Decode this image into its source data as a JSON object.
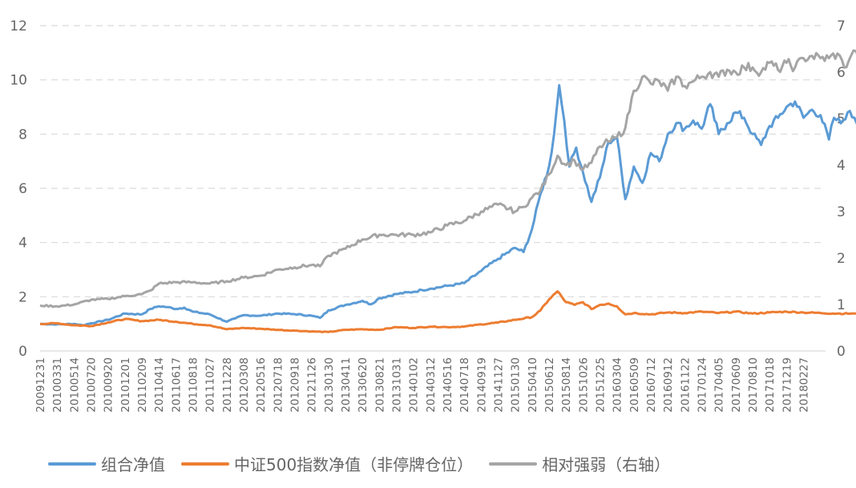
{
  "chart_data": {
    "type": "line",
    "left_axis": {
      "ylim": [
        0,
        12
      ],
      "ticks": [
        "0",
        "2",
        "4",
        "6",
        "8",
        "10",
        "12"
      ]
    },
    "right_axis": {
      "ylim": [
        0,
        7
      ],
      "ticks": [
        "0",
        "1",
        "2",
        "3",
        "4",
        "5",
        "6",
        "7"
      ]
    },
    "grid": true,
    "legend_position": "bottom",
    "categories": [
      "20091231",
      "20100331",
      "20100514",
      "20100720",
      "20100920",
      "20101201",
      "20110209",
      "20110414",
      "20110617",
      "20110818",
      "20111027",
      "20111228",
      "20120308",
      "20120516",
      "20120718",
      "20120918",
      "20121126",
      "20130130",
      "20130411",
      "20130620",
      "20130821",
      "20131031",
      "20140102",
      "20140312",
      "20140516",
      "20140718",
      "20140919",
      "20141127",
      "20150130",
      "20150410",
      "20150612",
      "20150814",
      "20151026",
      "20151225",
      "20160304",
      "20160509",
      "20160712",
      "20160912",
      "20161122",
      "20170124",
      "20170405",
      "20170609",
      "20170810",
      "20171018",
      "20171219",
      "20180227"
    ],
    "x_range": [
      0,
      46.3
    ],
    "series": [
      {
        "name": "组合净值",
        "axis": "left",
        "color": "#5b9bd5",
        "points": [
          [
            0,
            1.0
          ],
          [
            1,
            0.98
          ],
          [
            2,
            1.0
          ],
          [
            2.5,
            0.95
          ],
          [
            3,
            1.02
          ],
          [
            4,
            1.15
          ],
          [
            5,
            1.38
          ],
          [
            6,
            1.35
          ],
          [
            6.5,
            1.55
          ],
          [
            7,
            1.65
          ],
          [
            7.5,
            1.62
          ],
          [
            8,
            1.55
          ],
          [
            8.5,
            1.6
          ],
          [
            9,
            1.45
          ],
          [
            10,
            1.35
          ],
          [
            11,
            1.08
          ],
          [
            11.5,
            1.2
          ],
          [
            12,
            1.32
          ],
          [
            13,
            1.3
          ],
          [
            14,
            1.38
          ],
          [
            15,
            1.36
          ],
          [
            16,
            1.3
          ],
          [
            16.5,
            1.22
          ],
          [
            17,
            1.5
          ],
          [
            18,
            1.7
          ],
          [
            19,
            1.85
          ],
          [
            19.5,
            1.72
          ],
          [
            20,
            1.95
          ],
          [
            21,
            2.1
          ],
          [
            22,
            2.18
          ],
          [
            22.5,
            2.25
          ],
          [
            23,
            2.3
          ],
          [
            24,
            2.4
          ],
          [
            25,
            2.5
          ],
          [
            26,
            2.95
          ],
          [
            27,
            3.4
          ],
          [
            28,
            3.8
          ],
          [
            28.5,
            3.65
          ],
          [
            29,
            4.5
          ],
          [
            29.5,
            5.8
          ],
          [
            30,
            6.8
          ],
          [
            30.3,
            8.0
          ],
          [
            30.6,
            9.8
          ],
          [
            30.9,
            8.5
          ],
          [
            31.2,
            6.8
          ],
          [
            31.6,
            7.5
          ],
          [
            32,
            6.6
          ],
          [
            32.5,
            5.5
          ],
          [
            33,
            6.4
          ],
          [
            33.5,
            7.7
          ],
          [
            34,
            7.9
          ],
          [
            34.5,
            5.6
          ],
          [
            35,
            6.8
          ],
          [
            35.5,
            6.2
          ],
          [
            36,
            7.3
          ],
          [
            36.5,
            7.0
          ],
          [
            37,
            8.0
          ],
          [
            37.5,
            8.4
          ],
          [
            38,
            8.2
          ],
          [
            38.5,
            8.5
          ],
          [
            39,
            8.2
          ],
          [
            39.5,
            9.1
          ],
          [
            40,
            8.0
          ],
          [
            40.5,
            8.4
          ],
          [
            41,
            8.8
          ],
          [
            41.5,
            8.6
          ],
          [
            42,
            8.0
          ],
          [
            42.5,
            7.6
          ],
          [
            43,
            8.3
          ],
          [
            43.5,
            8.6
          ],
          [
            44,
            9.0
          ],
          [
            44.5,
            9.2
          ],
          [
            45,
            8.6
          ],
          [
            45.5,
            8.9
          ],
          [
            46,
            8.7
          ],
          [
            46.5,
            7.8
          ],
          [
            46.8,
            8.6
          ],
          [
            47.2,
            8.4
          ],
          [
            47.6,
            8.8
          ],
          [
            48,
            8.6
          ],
          [
            48.3,
            8.3
          ]
        ]
      },
      {
        "name": "中证500指数净值（非停牌仓位）",
        "axis": "left",
        "color": "#ed7d31",
        "points": [
          [
            0,
            1.0
          ],
          [
            1,
            1.02
          ],
          [
            2,
            0.95
          ],
          [
            3,
            0.92
          ],
          [
            4,
            1.05
          ],
          [
            5,
            1.18
          ],
          [
            6,
            1.1
          ],
          [
            7,
            1.15
          ],
          [
            8,
            1.08
          ],
          [
            9,
            1.0
          ],
          [
            10,
            0.95
          ],
          [
            11,
            0.8
          ],
          [
            12,
            0.85
          ],
          [
            13,
            0.82
          ],
          [
            14,
            0.78
          ],
          [
            15,
            0.75
          ],
          [
            16,
            0.72
          ],
          [
            17,
            0.7
          ],
          [
            18,
            0.78
          ],
          [
            19,
            0.8
          ],
          [
            20,
            0.78
          ],
          [
            21,
            0.88
          ],
          [
            22,
            0.85
          ],
          [
            23,
            0.9
          ],
          [
            24,
            0.88
          ],
          [
            25,
            0.9
          ],
          [
            26,
            0.98
          ],
          [
            27,
            1.05
          ],
          [
            28,
            1.15
          ],
          [
            29,
            1.25
          ],
          [
            29.5,
            1.5
          ],
          [
            30,
            1.9
          ],
          [
            30.5,
            2.2
          ],
          [
            31,
            1.8
          ],
          [
            31.5,
            1.7
          ],
          [
            32,
            1.8
          ],
          [
            32.5,
            1.55
          ],
          [
            33,
            1.7
          ],
          [
            33.5,
            1.75
          ],
          [
            34,
            1.65
          ],
          [
            34.5,
            1.35
          ],
          [
            35,
            1.4
          ],
          [
            36,
            1.35
          ],
          [
            37,
            1.42
          ],
          [
            38,
            1.4
          ],
          [
            39,
            1.45
          ],
          [
            40,
            1.4
          ],
          [
            41,
            1.45
          ],
          [
            42,
            1.38
          ],
          [
            43,
            1.42
          ],
          [
            44,
            1.45
          ],
          [
            45,
            1.42
          ],
          [
            46,
            1.4
          ],
          [
            47,
            1.38
          ],
          [
            48,
            1.38
          ],
          [
            48.3,
            1.35
          ]
        ]
      },
      {
        "name": "相对强弱（右轴）",
        "axis": "right",
        "color": "#a5a5a5",
        "points": [
          [
            0,
            0.98
          ],
          [
            1,
            0.96
          ],
          [
            2,
            1.0
          ],
          [
            3,
            1.1
          ],
          [
            4,
            1.12
          ],
          [
            5,
            1.18
          ],
          [
            6,
            1.22
          ],
          [
            6.5,
            1.3
          ],
          [
            7,
            1.45
          ],
          [
            8,
            1.48
          ],
          [
            9,
            1.48
          ],
          [
            10,
            1.45
          ],
          [
            11,
            1.5
          ],
          [
            12,
            1.58
          ],
          [
            13,
            1.62
          ],
          [
            14,
            1.75
          ],
          [
            15,
            1.8
          ],
          [
            16,
            1.85
          ],
          [
            16.5,
            1.82
          ],
          [
            17,
            2.05
          ],
          [
            18,
            2.2
          ],
          [
            19,
            2.4
          ],
          [
            20,
            2.5
          ],
          [
            21,
            2.5
          ],
          [
            22,
            2.5
          ],
          [
            23,
            2.55
          ],
          [
            24,
            2.7
          ],
          [
            25,
            2.8
          ],
          [
            26,
            3.0
          ],
          [
            27,
            3.15
          ],
          [
            28,
            3.0
          ],
          [
            28.5,
            3.1
          ],
          [
            29,
            3.3
          ],
          [
            29.5,
            3.45
          ],
          [
            30,
            3.8
          ],
          [
            30.5,
            4.2
          ],
          [
            31,
            4.0
          ],
          [
            31.5,
            4.1
          ],
          [
            32,
            3.9
          ],
          [
            32.5,
            4.05
          ],
          [
            33,
            4.4
          ],
          [
            33.5,
            4.5
          ],
          [
            34,
            4.6
          ],
          [
            34.5,
            4.8
          ],
          [
            35,
            5.6
          ],
          [
            35.5,
            5.9
          ],
          [
            36,
            5.75
          ],
          [
            36.5,
            5.8
          ],
          [
            37,
            5.6
          ],
          [
            37.5,
            5.9
          ],
          [
            38,
            5.7
          ],
          [
            38.5,
            5.8
          ],
          [
            39,
            5.9
          ],
          [
            39.5,
            6.0
          ],
          [
            40,
            5.9
          ],
          [
            40.5,
            6.05
          ],
          [
            41,
            6.0
          ],
          [
            41.5,
            6.1
          ],
          [
            42,
            6.1
          ],
          [
            42.5,
            6.0
          ],
          [
            43,
            6.2
          ],
          [
            43.5,
            6.05
          ],
          [
            44,
            6.2
          ],
          [
            44.5,
            6.1
          ],
          [
            45,
            6.3
          ],
          [
            45.5,
            6.35
          ],
          [
            46,
            6.3
          ],
          [
            46.5,
            6.3
          ],
          [
            47,
            6.4
          ],
          [
            47.4,
            6.1
          ],
          [
            47.8,
            6.35
          ],
          [
            48.1,
            6.45
          ],
          [
            48.3,
            6.35
          ]
        ]
      }
    ]
  },
  "legend": [
    {
      "label": "组合净值",
      "color": "#5b9bd5"
    },
    {
      "label": "中证500指数净值（非停牌仓位）",
      "color": "#ed7d31"
    },
    {
      "label": "相对强弱（右轴）",
      "color": "#a5a5a5"
    }
  ]
}
